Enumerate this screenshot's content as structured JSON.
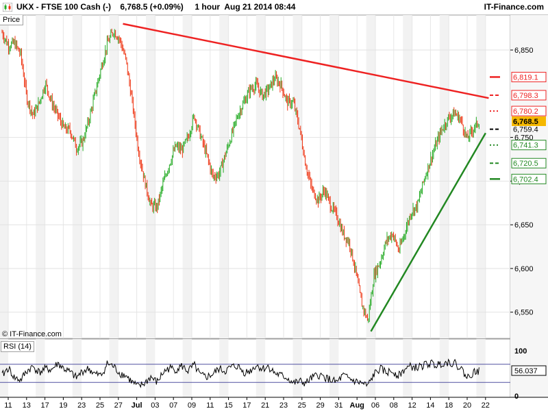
{
  "header": {
    "title": "UKX - FTSE 100 Cash (-)    6,768.5 (+0.09%)     1 hour  Aug 21 2014 08:44",
    "brand": "IT-Finance.com",
    "icon": "candlestick-chart-icon"
  },
  "price_tab": "Price",
  "copyright": "© IT-Finance.com",
  "rsi_label": "RSI (14)",
  "colors": {
    "up": "#22aa22",
    "down": "#ee3311",
    "resistance": "#ee2222",
    "support": "#228822",
    "current_price_bg": "#f5b800"
  },
  "chart_data": [
    {
      "type": "candlestick",
      "title": "UKX - FTSE 100 Cash (-)",
      "timeframe": "1 hour",
      "last": 6768.5,
      "change_pct": 0.09,
      "ylim": [
        6520,
        6890
      ],
      "y_ticks": [
        {
          "value": 6850,
          "label": "6,850"
        },
        {
          "value": 6750,
          "label": "6,750"
        },
        {
          "value": 6700,
          "label": "6,700"
        },
        {
          "value": 6650,
          "label": "6,650"
        },
        {
          "value": 6600,
          "label": "6,600"
        },
        {
          "value": 6550,
          "label": "6,550"
        }
      ],
      "x_ticks": [
        "11",
        "13",
        "17",
        "19",
        "23",
        "25",
        "27",
        "Jul",
        "03",
        "07",
        "09",
        "11",
        "15",
        "17",
        "21",
        "23",
        "25",
        "29",
        "31",
        "Aug",
        "06",
        "08",
        "12",
        "14",
        "18",
        "20",
        "22"
      ],
      "price_path": [
        [
          0,
          6870
        ],
        [
          2,
          6855
        ],
        [
          4,
          6858
        ],
        [
          6,
          6845
        ],
        [
          8,
          6795
        ],
        [
          10,
          6775
        ],
        [
          12,
          6790
        ],
        [
          14,
          6812
        ],
        [
          16,
          6790
        ],
        [
          18,
          6775
        ],
        [
          20,
          6760
        ],
        [
          22,
          6758
        ],
        [
          24,
          6738
        ],
        [
          26,
          6745
        ],
        [
          28,
          6770
        ],
        [
          30,
          6800
        ],
        [
          32,
          6830
        ],
        [
          34,
          6858
        ],
        [
          36,
          6872
        ],
        [
          38,
          6862
        ],
        [
          40,
          6838
        ],
        [
          42,
          6790
        ],
        [
          44,
          6735
        ],
        [
          46,
          6700
        ],
        [
          48,
          6672
        ],
        [
          50,
          6670
        ],
        [
          52,
          6698
        ],
        [
          54,
          6720
        ],
        [
          56,
          6740
        ],
        [
          58,
          6735
        ],
        [
          60,
          6750
        ],
        [
          62,
          6775
        ],
        [
          64,
          6752
        ],
        [
          66,
          6730
        ],
        [
          68,
          6705
        ],
        [
          70,
          6708
        ],
        [
          72,
          6730
        ],
        [
          74,
          6752
        ],
        [
          76,
          6775
        ],
        [
          78,
          6790
        ],
        [
          80,
          6805
        ],
        [
          82,
          6810
        ],
        [
          84,
          6798
        ],
        [
          86,
          6805
        ],
        [
          88,
          6818
        ],
        [
          90,
          6810
        ],
        [
          92,
          6790
        ],
        [
          94,
          6790
        ],
        [
          96,
          6760
        ],
        [
          98,
          6718
        ],
        [
          100,
          6690
        ],
        [
          102,
          6678
        ],
        [
          104,
          6690
        ],
        [
          106,
          6672
        ],
        [
          108,
          6660
        ],
        [
          110,
          6640
        ],
        [
          112,
          6630
        ],
        [
          114,
          6598
        ],
        [
          116,
          6560
        ],
        [
          118,
          6540
        ],
        [
          120,
          6592
        ],
        [
          122,
          6608
        ],
        [
          124,
          6632
        ],
        [
          126,
          6640
        ],
        [
          128,
          6620
        ],
        [
          130,
          6642
        ],
        [
          132,
          6665
        ],
        [
          134,
          6672
        ],
        [
          136,
          6700
        ],
        [
          138,
          6722
        ],
        [
          140,
          6742
        ],
        [
          142,
          6760
        ],
        [
          144,
          6772
        ],
        [
          146,
          6778
        ],
        [
          148,
          6770
        ],
        [
          150,
          6748
        ],
        [
          152,
          6760
        ],
        [
          154,
          6768.5
        ]
      ],
      "resistance_line": {
        "x": [
          39,
          157
        ],
        "y": [
          6880,
          6795
        ]
      },
      "support_line": {
        "x": [
          119,
          156
        ],
        "y": [
          6528,
          6755
        ]
      },
      "levels": [
        {
          "value": 6819.1,
          "label": "6,819.1",
          "kind": "resistance",
          "style": "solid"
        },
        {
          "value": 6798.3,
          "label": "6,798.3",
          "kind": "resistance",
          "style": "dashed"
        },
        {
          "value": 6780.2,
          "label": "6,780.2",
          "kind": "resistance",
          "style": "dotted"
        },
        {
          "value": 6768.5,
          "label": "6,768.5",
          "kind": "current",
          "style": "box"
        },
        {
          "value": 6759.4,
          "label": "6,759.4",
          "kind": "neutral",
          "style": "dashed"
        },
        {
          "value": 6741.3,
          "label": "6,741.3",
          "kind": "support",
          "style": "dotted"
        },
        {
          "value": 6720.5,
          "label": "6,720.5",
          "kind": "support",
          "style": "dashed"
        },
        {
          "value": 6702.4,
          "label": "6,702.4",
          "kind": "support",
          "style": "solid"
        }
      ]
    },
    {
      "type": "line",
      "title": "RSI (14)",
      "ylim": [
        0,
        100
      ],
      "y_ticks": [
        {
          "value": 100,
          "label": "100"
        },
        {
          "value": 0,
          "label": "0"
        }
      ],
      "bands": [
        70,
        30
      ],
      "last": 56.037,
      "last_label": "56.037",
      "rsi_path": [
        [
          0,
          45
        ],
        [
          2,
          62
        ],
        [
          4,
          40
        ],
        [
          6,
          35
        ],
        [
          8,
          55
        ],
        [
          10,
          65
        ],
        [
          12,
          52
        ],
        [
          14,
          60
        ],
        [
          16,
          58
        ],
        [
          18,
          72
        ],
        [
          20,
          60
        ],
        [
          22,
          52
        ],
        [
          24,
          40
        ],
        [
          26,
          55
        ],
        [
          28,
          60
        ],
        [
          30,
          48
        ],
        [
          32,
          45
        ],
        [
          34,
          72
        ],
        [
          36,
          65
        ],
        [
          38,
          50
        ],
        [
          40,
          45
        ],
        [
          42,
          30
        ],
        [
          44,
          20
        ],
        [
          46,
          28
        ],
        [
          48,
          42
        ],
        [
          50,
          30
        ],
        [
          52,
          52
        ],
        [
          54,
          62
        ],
        [
          56,
          58
        ],
        [
          58,
          66
        ],
        [
          60,
          55
        ],
        [
          62,
          68
        ],
        [
          64,
          45
        ],
        [
          66,
          42
        ],
        [
          68,
          48
        ],
        [
          70,
          60
        ],
        [
          72,
          55
        ],
        [
          74,
          64
        ],
        [
          76,
          66
        ],
        [
          78,
          52
        ],
        [
          80,
          55
        ],
        [
          82,
          68
        ],
        [
          84,
          60
        ],
        [
          86,
          65
        ],
        [
          88,
          50
        ],
        [
          90,
          45
        ],
        [
          92,
          40
        ],
        [
          94,
          28
        ],
        [
          96,
          32
        ],
        [
          98,
          28
        ],
        [
          100,
          40
        ],
        [
          102,
          46
        ],
        [
          104,
          42
        ],
        [
          106,
          35
        ],
        [
          108,
          30
        ],
        [
          110,
          45
        ],
        [
          112,
          38
        ],
        [
          114,
          32
        ],
        [
          116,
          28
        ],
        [
          118,
          22
        ],
        [
          120,
          48
        ],
        [
          122,
          60
        ],
        [
          124,
          52
        ],
        [
          126,
          55
        ],
        [
          128,
          45
        ],
        [
          130,
          60
        ],
        [
          132,
          65
        ],
        [
          134,
          62
        ],
        [
          136,
          68
        ],
        [
          138,
          72
        ],
        [
          140,
          68
        ],
        [
          142,
          73
        ],
        [
          144,
          75
        ],
        [
          146,
          72
        ],
        [
          148,
          62
        ],
        [
          150,
          40
        ],
        [
          152,
          52
        ],
        [
          154,
          56.037
        ]
      ]
    }
  ]
}
